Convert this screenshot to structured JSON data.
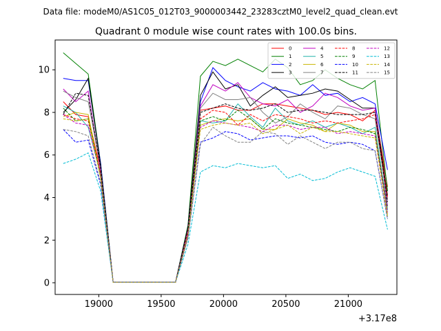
{
  "header": {
    "data_file": "Data file: modeM0/AS1C05_012T03_9000003442_23283cztM0_level2_quad_clean.evt"
  },
  "chart_data": {
    "type": "line",
    "title": "Quadrant 0 module wise count rates with 100.0s bins.",
    "xlabel": "",
    "ylabel": "",
    "x_offset_label": "+3.17e8",
    "xlim": [
      18650,
      21390
    ],
    "ylim": [
      -0.55,
      11.4
    ],
    "x_ticks": [
      19000,
      19500,
      20000,
      20500,
      21000
    ],
    "y_ticks": [
      0,
      2,
      4,
      6,
      8,
      10
    ],
    "grid": false,
    "legend": {
      "position": "top-right",
      "columns": 4
    },
    "x": [
      18715,
      18815,
      18915,
      19015,
      19115,
      19215,
      19315,
      19415,
      19515,
      19615,
      19715,
      19815,
      19915,
      20015,
      20115,
      20215,
      20315,
      20415,
      20515,
      20615,
      20715,
      20815,
      20915,
      21015,
      21115,
      21215,
      21315
    ],
    "series": [
      {
        "name": "0",
        "color": "#ff0000",
        "dash": false,
        "values": [
          8.5,
          7.9,
          7.8,
          5.3,
          0.02,
          0.02,
          0.02,
          0.02,
          0.02,
          0.02,
          2.5,
          8.1,
          8.2,
          8.3,
          8.1,
          8.1,
          8.4,
          8.4,
          8.3,
          8.2,
          8.1,
          7.9,
          8.0,
          7.9,
          7.6,
          8.1,
          4.5
        ]
      },
      {
        "name": "1",
        "color": "#008000",
        "dash": false,
        "values": [
          10.8,
          10.3,
          9.8,
          5.6,
          0.02,
          0.02,
          0.02,
          0.02,
          0.02,
          0.02,
          2.7,
          9.7,
          10.4,
          10.2,
          10.5,
          10.2,
          9.9,
          10.5,
          10.1,
          9.3,
          9.5,
          10.0,
          9.6,
          9.3,
          9.1,
          9.5,
          4.3
        ]
      },
      {
        "name": "2",
        "color": "#0000ff",
        "dash": false,
        "values": [
          9.6,
          9.5,
          9.5,
          5.6,
          0.02,
          0.02,
          0.02,
          0.02,
          0.02,
          0.02,
          2.6,
          8.5,
          10.1,
          9.5,
          9.2,
          9.0,
          9.4,
          9.1,
          9.0,
          8.8,
          9.3,
          8.8,
          8.9,
          8.5,
          8.7,
          8.4,
          5.3
        ]
      },
      {
        "name": "3",
        "color": "#000000",
        "dash": false,
        "values": [
          8.0,
          8.6,
          9.6,
          5.5,
          0.02,
          0.02,
          0.02,
          0.02,
          0.02,
          0.02,
          2.6,
          8.8,
          9.9,
          9.1,
          9.3,
          8.3,
          8.8,
          9.2,
          8.7,
          8.8,
          8.9,
          9.1,
          9.0,
          8.6,
          8.2,
          8.2,
          4.1
        ]
      },
      {
        "name": "4",
        "color": "#c000c0",
        "dash": false,
        "values": [
          9.1,
          8.5,
          9.0,
          5.2,
          0.02,
          0.02,
          0.02,
          0.02,
          0.02,
          0.02,
          2.5,
          8.3,
          9.3,
          9.0,
          9.4,
          8.7,
          8.4,
          8.3,
          8.6,
          8.0,
          8.3,
          8.9,
          8.7,
          8.3,
          8.1,
          8.2,
          3.6
        ]
      },
      {
        "name": "5",
        "color": "#20b2aa",
        "dash": false,
        "values": [
          8.3,
          8.0,
          7.3,
          5.1,
          0.02,
          0.02,
          0.02,
          0.02,
          0.02,
          0.02,
          2.4,
          7.6,
          7.5,
          7.6,
          8.4,
          7.8,
          7.3,
          8.2,
          7.6,
          7.4,
          7.6,
          7.3,
          7.5,
          7.3,
          7.0,
          7.3,
          3.4
        ]
      },
      {
        "name": "6",
        "color": "#c8b400",
        "dash": false,
        "values": [
          7.8,
          8.0,
          7.9,
          5.0,
          0.02,
          0.02,
          0.02,
          0.02,
          0.02,
          0.02,
          2.3,
          7.4,
          7.6,
          7.7,
          7.6,
          7.7,
          7.2,
          7.2,
          7.7,
          7.5,
          7.4,
          7.1,
          7.5,
          7.4,
          7.1,
          7.1,
          3.2
        ]
      },
      {
        "name": "7",
        "color": "#808080",
        "dash": false,
        "values": [
          9.0,
          8.7,
          8.5,
          5.4,
          0.02,
          0.02,
          0.02,
          0.02,
          0.02,
          0.02,
          2.4,
          8.2,
          8.9,
          8.6,
          8.6,
          8.7,
          8.0,
          7.5,
          7.8,
          8.4,
          8.0,
          7.7,
          8.3,
          8.2,
          7.9,
          7.7,
          3.9
        ]
      },
      {
        "name": "8",
        "color": "#ff0000",
        "dash": true,
        "values": [
          7.9,
          7.7,
          7.6,
          5.1,
          0.02,
          0.02,
          0.02,
          0.02,
          0.02,
          0.02,
          2.4,
          7.7,
          8.1,
          8.0,
          7.4,
          7.9,
          7.6,
          7.9,
          7.8,
          7.7,
          7.5,
          7.6,
          7.5,
          7.6,
          7.7,
          7.9,
          4.0
        ]
      },
      {
        "name": "9",
        "color": "#008000",
        "dash": true,
        "values": [
          8.2,
          7.6,
          7.7,
          5.0,
          0.02,
          0.02,
          0.02,
          0.02,
          0.02,
          0.02,
          2.3,
          7.6,
          7.8,
          7.6,
          8.1,
          7.7,
          7.2,
          7.7,
          7.5,
          7.4,
          7.3,
          7.2,
          7.1,
          7.3,
          7.2,
          7.0,
          3.5
        ]
      },
      {
        "name": "10",
        "color": "#0000ff",
        "dash": true,
        "values": [
          7.2,
          6.6,
          6.7,
          4.6,
          0.02,
          0.02,
          0.02,
          0.02,
          0.02,
          0.02,
          2.1,
          6.6,
          6.8,
          7.1,
          7.0,
          6.7,
          6.8,
          6.9,
          6.9,
          6.8,
          6.9,
          6.6,
          6.5,
          6.6,
          6.5,
          6.2,
          3.0
        ]
      },
      {
        "name": "11",
        "color": "#000000",
        "dash": true,
        "values": [
          7.9,
          8.9,
          8.8,
          5.4,
          0.02,
          0.02,
          0.02,
          0.02,
          0.02,
          0.02,
          2.6,
          8.0,
          8.2,
          8.4,
          8.2,
          8.1,
          8.2,
          8.4,
          8.0,
          8.1,
          8.1,
          8.0,
          7.9,
          7.9,
          7.9,
          8.0,
          3.8
        ]
      },
      {
        "name": "12",
        "color": "#c000c0",
        "dash": true,
        "values": [
          7.9,
          7.5,
          7.4,
          5.0,
          0.02,
          0.02,
          0.02,
          0.02,
          0.02,
          0.02,
          2.3,
          7.3,
          7.6,
          7.5,
          7.4,
          7.3,
          7.1,
          7.4,
          7.4,
          7.2,
          7.3,
          7.3,
          7.0,
          7.1,
          7.0,
          6.9,
          3.3
        ]
      },
      {
        "name": "13",
        "color": "#00bcd4",
        "dash": true,
        "values": [
          5.6,
          5.8,
          6.1,
          4.3,
          0.02,
          0.02,
          0.02,
          0.02,
          0.02,
          0.02,
          1.8,
          5.2,
          5.5,
          5.4,
          5.6,
          5.5,
          5.4,
          5.5,
          4.9,
          5.1,
          4.8,
          4.9,
          5.2,
          5.4,
          5.2,
          5.0,
          2.5
        ]
      },
      {
        "name": "14",
        "color": "#c8b400",
        "dash": true,
        "values": [
          7.7,
          7.6,
          7.7,
          4.9,
          0.02,
          0.02,
          0.02,
          0.02,
          0.02,
          0.02,
          2.2,
          7.2,
          7.4,
          7.5,
          7.4,
          7.5,
          7.0,
          7.2,
          7.4,
          7.0,
          7.3,
          7.1,
          7.1,
          7.0,
          6.9,
          6.8,
          3.1
        ]
      },
      {
        "name": "15",
        "color": "#808080",
        "dash": true,
        "values": [
          7.2,
          7.1,
          6.9,
          4.7,
          0.02,
          0.02,
          0.02,
          0.02,
          0.02,
          0.02,
          2.1,
          6.5,
          7.3,
          6.9,
          6.6,
          6.6,
          7.1,
          7.0,
          6.5,
          6.9,
          6.6,
          6.3,
          6.6,
          6.6,
          6.3,
          6.2,
          3.0
        ]
      }
    ]
  }
}
